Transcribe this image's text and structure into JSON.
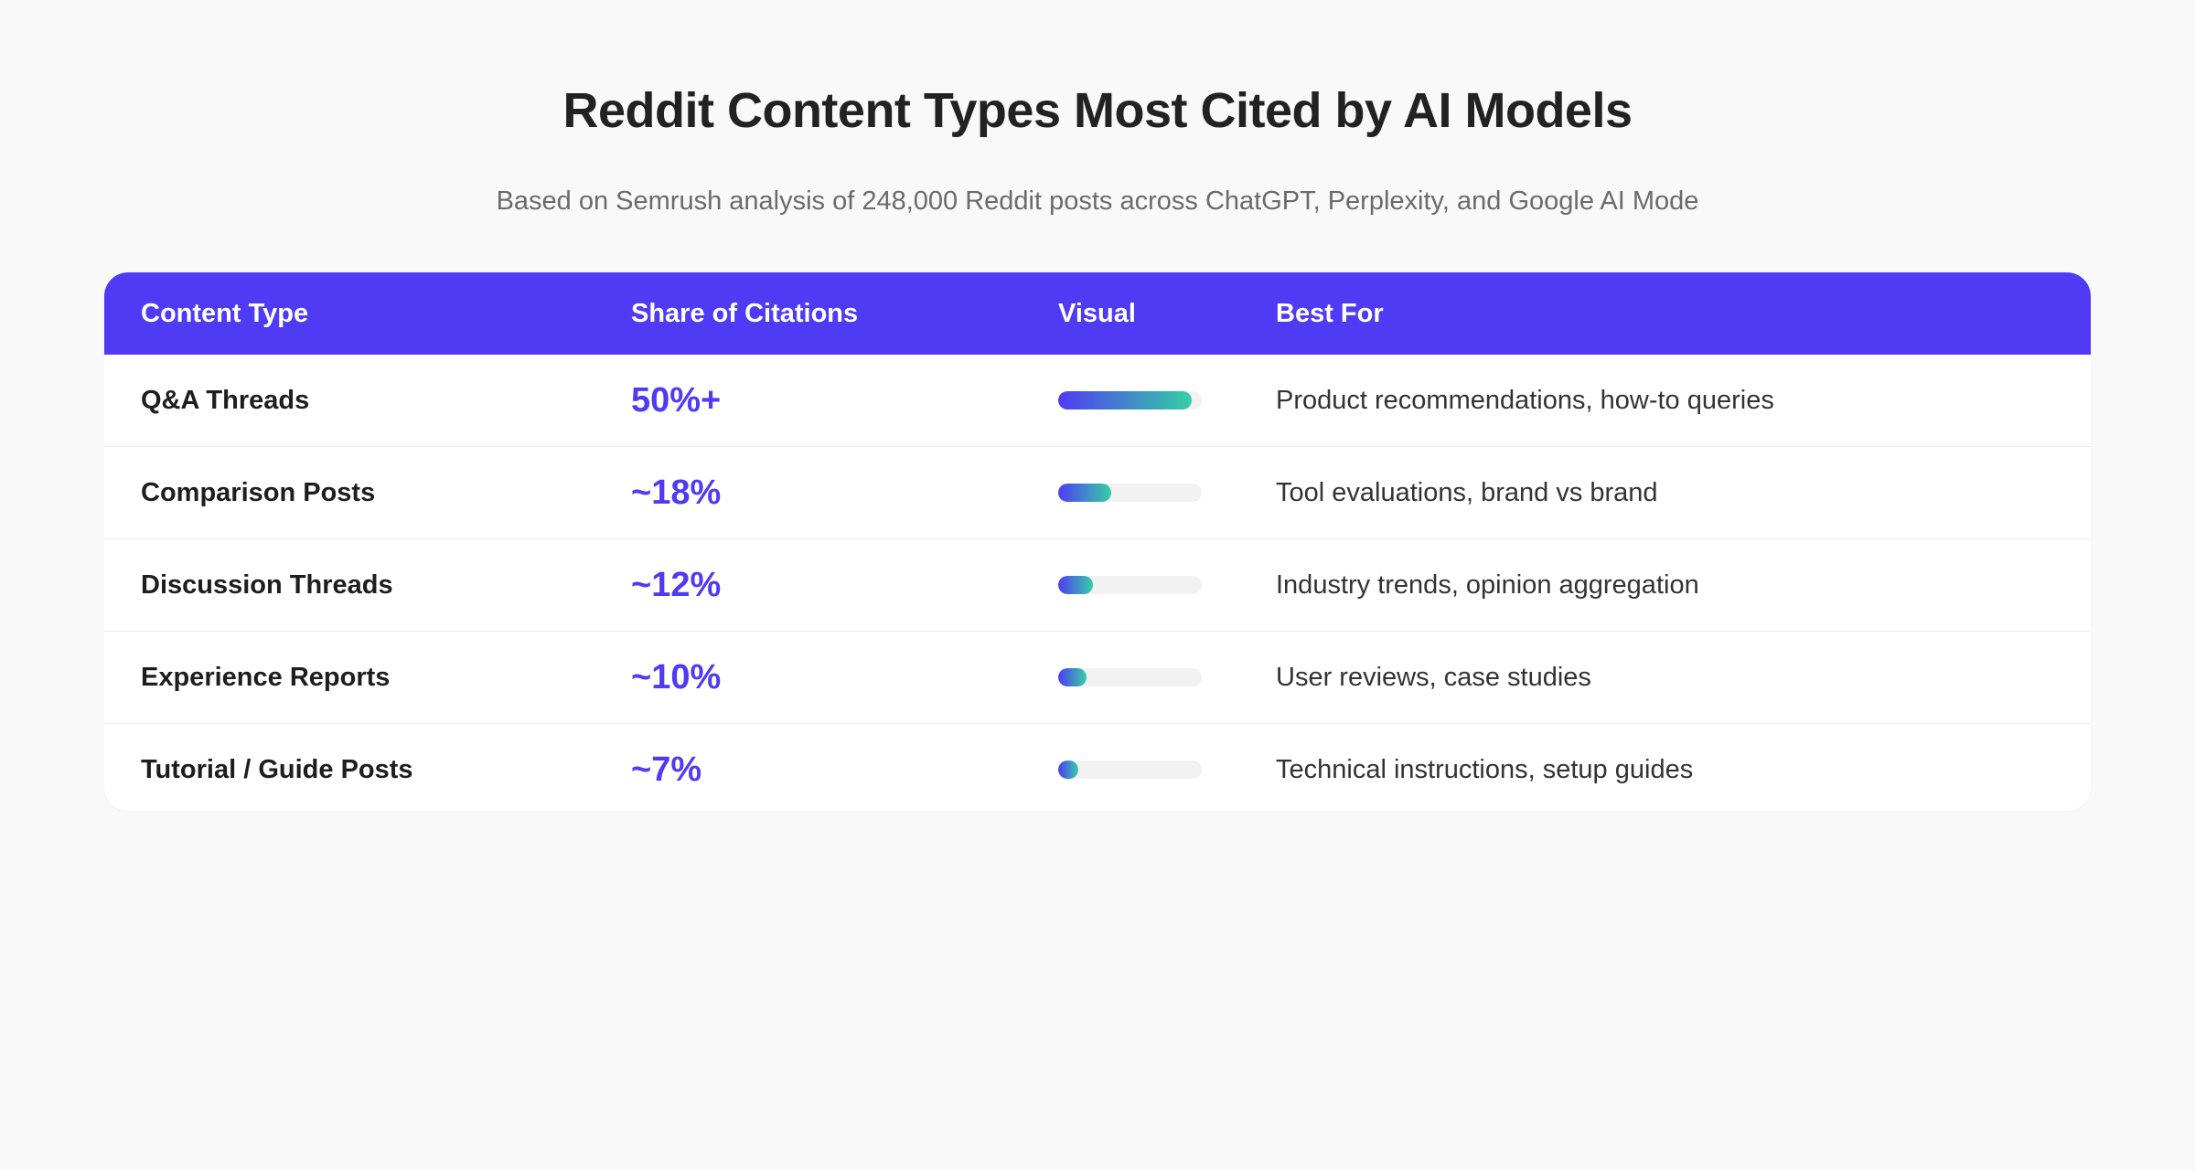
{
  "title": "Reddit Content Types Most Cited by AI Models",
  "subtitle": "Based on Semrush analysis of 248,000 Reddit posts across ChatGPT, Perplexity, and Google AI Mode",
  "columns": [
    "Content Type",
    "Share of Citations",
    "Visual",
    "Best For"
  ],
  "colors": {
    "accent": "#4f3bf4",
    "bar_gradient_end": "#35cfa4",
    "bar_track": "#f2f2f2"
  },
  "chart_data": {
    "type": "table",
    "title": "Reddit Content Types Most Cited by AI Models",
    "categories": [
      "Q&A Threads",
      "Comparison Posts",
      "Discussion Threads",
      "Experience Reports",
      "Tutorial / Guide Posts"
    ],
    "values": [
      50,
      18,
      12,
      10,
      7
    ],
    "rows": [
      {
        "type": "Q&A Threads",
        "share": "50%+",
        "value": 50,
        "bar_fraction": 0.93,
        "best_for": "Product recommendations, how-to queries"
      },
      {
        "type": "Comparison Posts",
        "share": "~18%",
        "value": 18,
        "bar_fraction": 0.37,
        "best_for": "Tool evaluations, brand vs brand"
      },
      {
        "type": "Discussion Threads",
        "share": "~12%",
        "value": 12,
        "bar_fraction": 0.24,
        "best_for": "Industry trends, opinion aggregation"
      },
      {
        "type": "Experience Reports",
        "share": "~10%",
        "value": 10,
        "bar_fraction": 0.2,
        "best_for": "User reviews, case studies"
      },
      {
        "type": "Tutorial / Guide Posts",
        "share": "~7%",
        "value": 7,
        "bar_fraction": 0.14,
        "best_for": "Technical instructions, setup guides"
      }
    ]
  }
}
